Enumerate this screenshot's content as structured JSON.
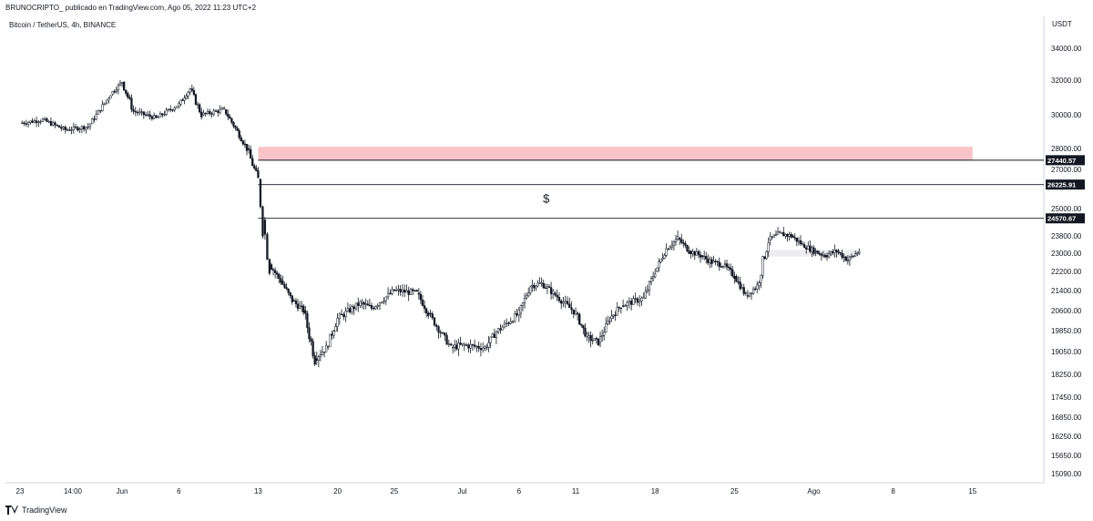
{
  "header": {
    "author_line": "BRUNOCRIPTO_ publicado en TradingView.com, Ago 05, 2022 11:23 UTC+2"
  },
  "chart_title": "Bitcoin / TetherUS, 4h, BINANCE",
  "currency": "USDT",
  "footer": {
    "brand": "TradingView",
    "logo_icon": "tradingview-logo-icon"
  },
  "chart_data": {
    "type": "candlestick",
    "symbol": "Bitcoin / TetherUS",
    "interval": "4h",
    "exchange": "BINANCE",
    "y_axis_ticks": [
      "34000.00",
      "32000.00",
      "30000.00",
      "28000.00",
      "27000.00",
      "25000.00",
      "23800.00",
      "23000.00",
      "22200.00",
      "21400.00",
      "20600.00",
      "19850.00",
      "19050.00",
      "18250.00",
      "17450.00",
      "16850.00",
      "16250.00",
      "15650.00",
      "15090.00"
    ],
    "x_axis_ticks": [
      "23",
      "14:00",
      "Jun",
      "6",
      "13",
      "20",
      "25",
      "Jul",
      "6",
      "11",
      "18",
      "25",
      "Ago",
      "8",
      "15"
    ],
    "price_path": [
      {
        "date": "May 23",
        "price": 29500
      },
      {
        "date": "May 25",
        "price": 29700
      },
      {
        "date": "May 27",
        "price": 29100
      },
      {
        "date": "May 29",
        "price": 29300
      },
      {
        "date": "May 31",
        "price": 31200
      },
      {
        "date": "Jun 1",
        "price": 31900
      },
      {
        "date": "Jun 2",
        "price": 30200
      },
      {
        "date": "Jun 4",
        "price": 29800
      },
      {
        "date": "Jun 6",
        "price": 30600
      },
      {
        "date": "Jun 7",
        "price": 31500
      },
      {
        "date": "Jun 8",
        "price": 30000
      },
      {
        "date": "Jun 10",
        "price": 30300
      },
      {
        "date": "Jun 11",
        "price": 29200
      },
      {
        "date": "Jun 12",
        "price": 28000
      },
      {
        "date": "Jun 13",
        "price": 26500
      },
      {
        "date": "Jun 13 b",
        "price": 24500
      },
      {
        "date": "Jun 14",
        "price": 22500
      },
      {
        "date": "Jun 15",
        "price": 21800
      },
      {
        "date": "Jun 16",
        "price": 21000
      },
      {
        "date": "Jun 17",
        "price": 20600
      },
      {
        "date": "Jun 18",
        "price": 18800
      },
      {
        "date": "Jun 19",
        "price": 19200
      },
      {
        "date": "Jun 20",
        "price": 20300
      },
      {
        "date": "Jun 22",
        "price": 20900
      },
      {
        "date": "Jun 23",
        "price": 20700
      },
      {
        "date": "Jun 25",
        "price": 21400
      },
      {
        "date": "Jun 27",
        "price": 21300
      },
      {
        "date": "Jun 28",
        "price": 20500
      },
      {
        "date": "Jun 30",
        "price": 19200
      },
      {
        "date": "Jul 1",
        "price": 19300
      },
      {
        "date": "Jul 3",
        "price": 19200
      },
      {
        "date": "Jul 4",
        "price": 19800
      },
      {
        "date": "Jul 6",
        "price": 20500
      },
      {
        "date": "Jul 7",
        "price": 21600
      },
      {
        "date": "Jul 8",
        "price": 21700
      },
      {
        "date": "Jul 9",
        "price": 21300
      },
      {
        "date": "Jul 11",
        "price": 20500
      },
      {
        "date": "Jul 12",
        "price": 19600
      },
      {
        "date": "Jul 13",
        "price": 19400
      },
      {
        "date": "Jul 14",
        "price": 20300
      },
      {
        "date": "Jul 15",
        "price": 20800
      },
      {
        "date": "Jul 17",
        "price": 21100
      },
      {
        "date": "Jul 18",
        "price": 22200
      },
      {
        "date": "Jul 19",
        "price": 23200
      },
      {
        "date": "Jul 20",
        "price": 23700
      },
      {
        "date": "Jul 21",
        "price": 23100
      },
      {
        "date": "Jul 22",
        "price": 22900
      },
      {
        "date": "Jul 23",
        "price": 22600
      },
      {
        "date": "Jul 24",
        "price": 22500
      },
      {
        "date": "Jul 25",
        "price": 22000
      },
      {
        "date": "Jul 26",
        "price": 21200
      },
      {
        "date": "Jul 27",
        "price": 21600
      },
      {
        "date": "Jul 28",
        "price": 23600
      },
      {
        "date": "Jul 29",
        "price": 23900
      },
      {
        "date": "Jul 30",
        "price": 23800
      },
      {
        "date": "Jul 31",
        "price": 23400
      },
      {
        "date": "Aug 1",
        "price": 23100
      },
      {
        "date": "Aug 2",
        "price": 22900
      },
      {
        "date": "Aug 3",
        "price": 23100
      },
      {
        "date": "Aug 4",
        "price": 22700
      },
      {
        "date": "Aug 5",
        "price": 23100
      }
    ],
    "horizontal_levels": [
      {
        "label": "27440.57",
        "price": 27440.57
      },
      {
        "label": "26225.91",
        "price": 26225.91
      },
      {
        "label": "24570.67",
        "price": 24570.67
      }
    ],
    "zones": [
      {
        "name": "resistance-zone",
        "from": 27440.57,
        "to": 28100,
        "start": "Jun 13",
        "end": "Aug 15",
        "color": "#f9c4c9"
      },
      {
        "name": "consolidation-zone",
        "from": 22850,
        "to": 23150,
        "start": "Jul 28",
        "end": "Aug 5",
        "color": "#ededf0"
      }
    ],
    "annotations": [
      {
        "text": "$",
        "price": 25200,
        "date": "Jul 6"
      }
    ],
    "colors": {
      "candle": "#131722",
      "line": "#131722",
      "label_bg": "#131722",
      "zone_red": "#f9c4c9",
      "zone_grey": "#ededf0"
    },
    "grid": false
  }
}
